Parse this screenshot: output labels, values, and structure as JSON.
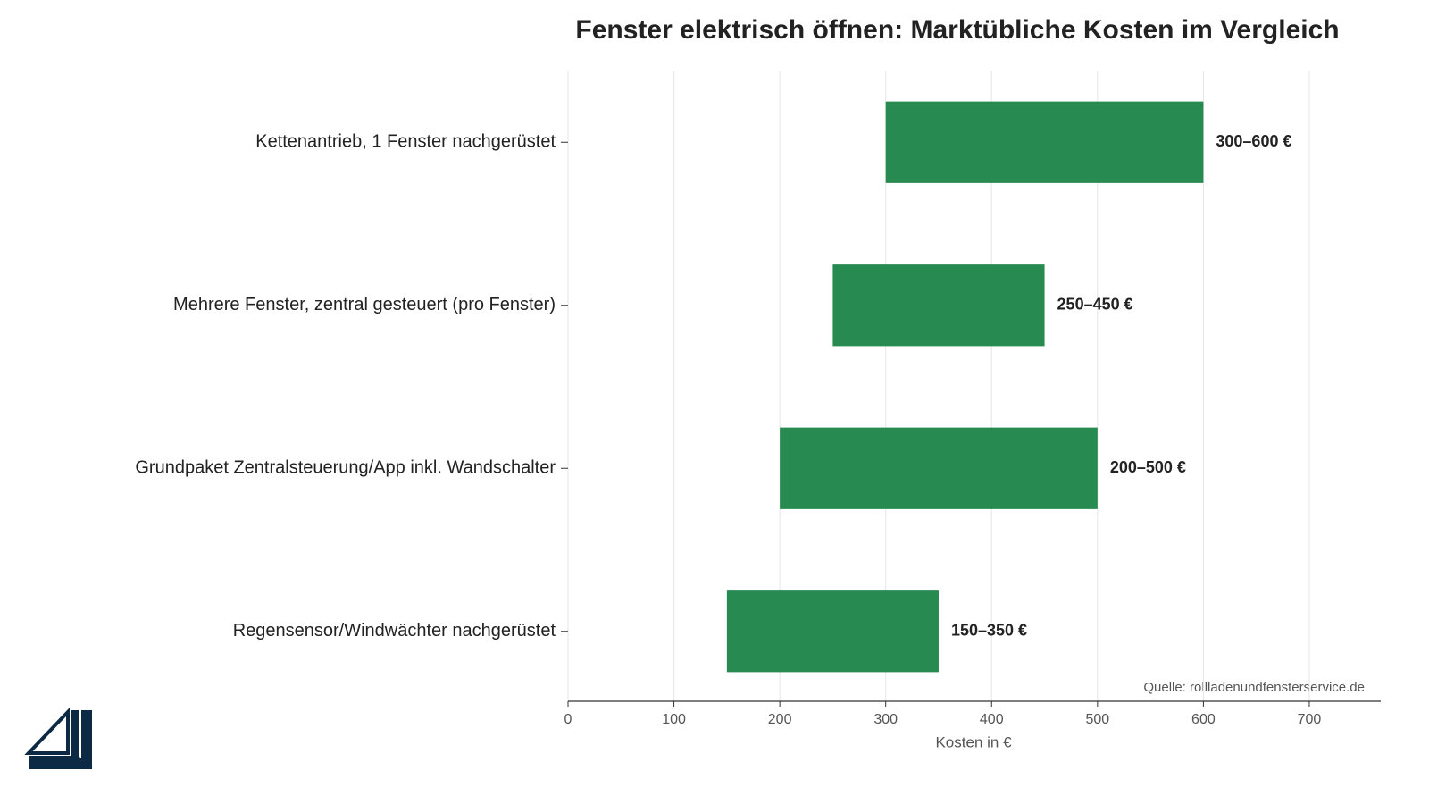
{
  "chart_data": {
    "type": "range_bar",
    "title": "Fenster elektrisch öffnen: Marktübliche Kosten im Vergleich",
    "categories": [
      "Kettenantrieb, 1 Fenster nachgerüstet",
      "Mehrere Fenster, zentral gesteuert (pro Fenster)",
      "Grundpaket Zentralsteuerung/App inkl. Wandschalter",
      "Regensensor/Windwächter nachgerüstet"
    ],
    "low": [
      300,
      250,
      200,
      150
    ],
    "high": [
      600,
      450,
      500,
      350
    ],
    "value_labels": [
      "300–600 €",
      "250–450 €",
      "200–500 €",
      "150–350 €"
    ],
    "color": "#278a50",
    "xlim": [
      0,
      767.5
    ],
    "xticks": [
      0,
      100,
      200,
      300,
      400,
      500,
      600,
      700
    ],
    "xlabel": "Kosten in €",
    "grid": true,
    "source": "Quelle: rollladenundfensterservice.de"
  }
}
